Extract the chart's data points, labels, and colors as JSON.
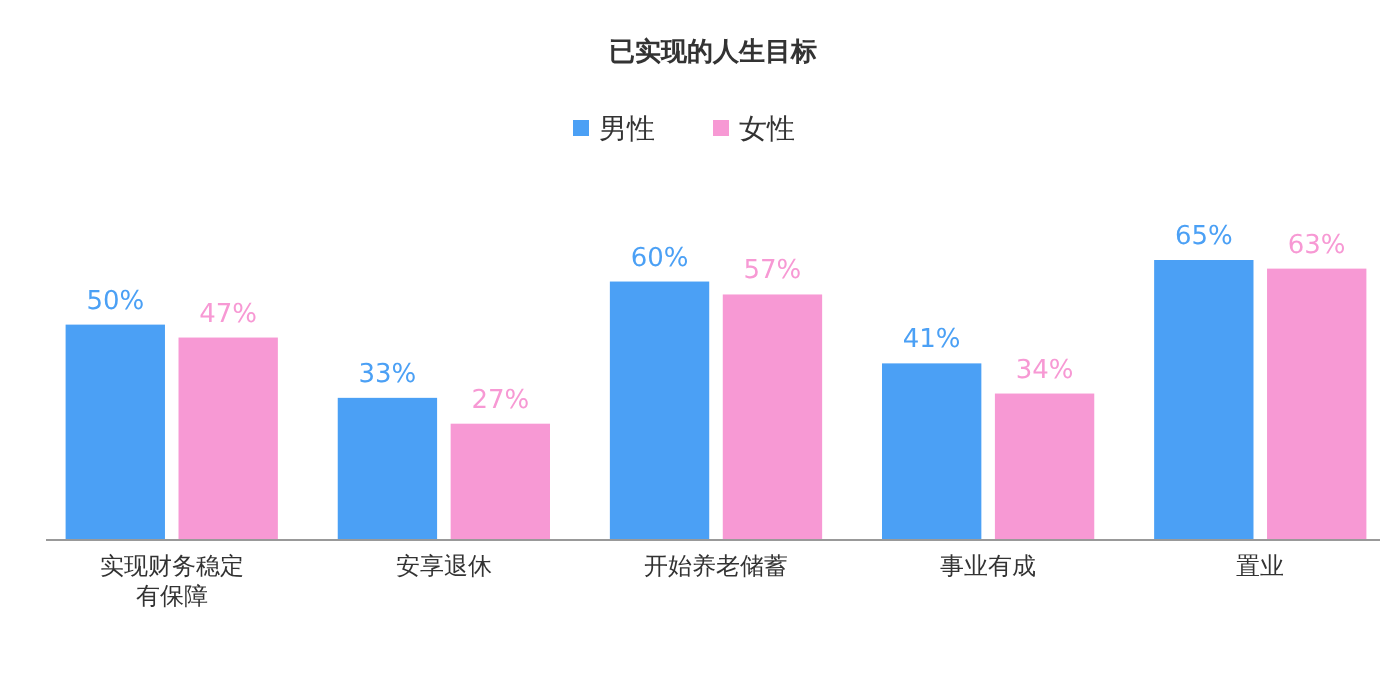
{
  "chart_data": {
    "type": "bar",
    "title": "已实现的人生目标",
    "categories": [
      "实现财务稳定有保障",
      "安享退休",
      "开始养老储蓄",
      "事业有成",
      "置业"
    ],
    "series": [
      {
        "name": "男性",
        "color": "#4ba0f5",
        "values": [
          50,
          33,
          60,
          41,
          65
        ],
        "value_labels": [
          "50%",
          "33%",
          "60%",
          "41%",
          "65%"
        ]
      },
      {
        "name": "女性",
        "color": "#f799d4",
        "values": [
          47,
          27,
          57,
          34,
          63
        ],
        "value_labels": [
          "47%",
          "27%",
          "57%",
          "34%",
          "63%"
        ]
      }
    ],
    "legend": "top"
  }
}
